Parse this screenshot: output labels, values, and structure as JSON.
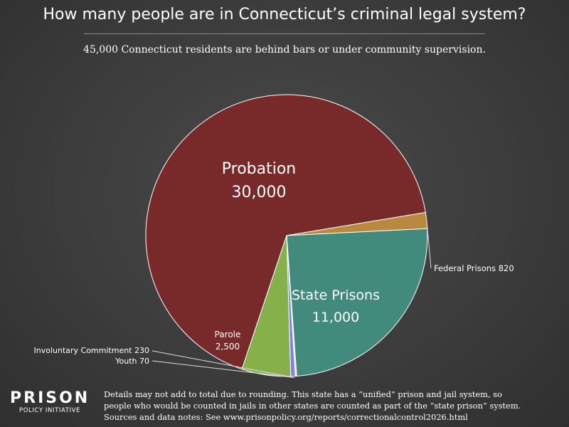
{
  "title": "How many people are in Connecticut’s criminal legal system?",
  "subtitle": "45,000 Connecticut residents are behind bars or under community supervision.",
  "chart_data": {
    "type": "pie",
    "total": 45000,
    "slices": [
      {
        "name": "Probation",
        "value": 30000,
        "value_label": "30,000",
        "color": "#782a2b"
      },
      {
        "name": "Federal Prisons",
        "value": 820,
        "value_label": "820",
        "color": "#b8893e"
      },
      {
        "name": "State Prisons",
        "value": 11000,
        "value_label": "11,000",
        "color": "#428a7b"
      },
      {
        "name": "Youth",
        "value": 70,
        "value_label": "70",
        "color": "#e8e8ff"
      },
      {
        "name": "Involuntary Commitment",
        "value": 230,
        "value_label": "230",
        "color": "#7f80f0"
      },
      {
        "name": "Parole",
        "value": 2500,
        "value_label": "2,500",
        "color": "#86b04a"
      }
    ]
  },
  "logo": {
    "main": "PRISON",
    "sub": "POLICY INITIATIVE"
  },
  "notes": {
    "line1": "Details may not add to total due to rounding. This state has a “unified” prison and jail system, so",
    "line2": "people who would be counted in jails in other states are counted as part of the “state prison” system.",
    "line3": "Sources and data notes: See www.prisonpolicy.org/reports/correctionalcontrol2026.html"
  },
  "colors": {
    "background": "#3c3c3c",
    "text": "#ffffff"
  }
}
